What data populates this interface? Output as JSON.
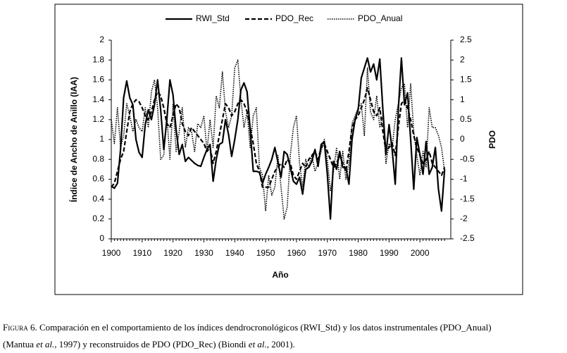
{
  "chart_data": {
    "type": "line",
    "xlabel": "Año",
    "ylabel": "Índice de Ancho de Anillo (IAA)",
    "y2label": "PDO",
    "xlim": [
      1900,
      2010
    ],
    "xticks": [
      1900,
      1910,
      1920,
      1930,
      1940,
      1950,
      1960,
      1970,
      1980,
      1990,
      2000
    ],
    "ylim": [
      0,
      2
    ],
    "yticks": [
      0,
      0.2,
      0.4,
      0.6,
      0.8,
      1,
      1.2,
      1.4,
      1.6,
      1.8,
      2
    ],
    "y2lim": [
      -2.5,
      2.5
    ],
    "y2ticks": [
      -2.5,
      -2,
      -1.5,
      -1,
      -0.5,
      0,
      0.5,
      1,
      1.5,
      2,
      2.5
    ],
    "x": [
      1900,
      1901,
      1902,
      1903,
      1904,
      1905,
      1906,
      1907,
      1908,
      1909,
      1910,
      1911,
      1912,
      1913,
      1914,
      1915,
      1916,
      1917,
      1918,
      1919,
      1920,
      1921,
      1922,
      1923,
      1924,
      1925,
      1926,
      1927,
      1928,
      1929,
      1930,
      1931,
      1932,
      1933,
      1934,
      1935,
      1936,
      1937,
      1938,
      1939,
      1940,
      1941,
      1942,
      1943,
      1944,
      1945,
      1946,
      1947,
      1948,
      1949,
      1950,
      1951,
      1952,
      1953,
      1954,
      1955,
      1956,
      1957,
      1958,
      1959,
      1960,
      1961,
      1962,
      1963,
      1964,
      1965,
      1966,
      1967,
      1968,
      1969,
      1970,
      1971,
      1972,
      1973,
      1974,
      1975,
      1976,
      1977,
      1978,
      1979,
      1980,
      1981,
      1982,
      1983,
      1984,
      1985,
      1986,
      1987,
      1988,
      1989,
      1990,
      1991,
      1992,
      1993,
      1994,
      1995,
      1996,
      1997,
      1998,
      1999,
      2000,
      2001,
      2002,
      2003,
      2004,
      2005,
      2006,
      2007,
      2008
    ],
    "series": [
      {
        "name": "RWI_Std",
        "color": "#000000",
        "dash": "solid",
        "values": [
          0.53,
          0.51,
          0.56,
          0.9,
          1.42,
          1.59,
          1.42,
          1.35,
          1.0,
          0.87,
          0.82,
          1.15,
          1.3,
          1.2,
          1.35,
          1.6,
          1.3,
          0.9,
          1.2,
          1.6,
          1.45,
          1.1,
          0.85,
          0.95,
          0.78,
          0.82,
          0.79,
          0.76,
          0.74,
          0.73,
          0.82,
          0.9,
          0.95,
          0.58,
          0.8,
          0.95,
          0.97,
          1.2,
          1.05,
          0.83,
          1.0,
          1.2,
          1.5,
          1.57,
          1.48,
          1.1,
          0.68,
          0.68,
          0.67,
          0.56,
          0.65,
          0.72,
          0.8,
          0.92,
          0.77,
          0.62,
          0.88,
          0.85,
          0.72,
          0.58,
          0.55,
          0.62,
          0.45,
          0.7,
          0.72,
          0.78,
          0.9,
          0.73,
          0.95,
          0.98,
          0.65,
          0.2,
          0.78,
          0.7,
          0.88,
          0.72,
          0.72,
          0.55,
          1.0,
          1.2,
          1.3,
          1.62,
          1.72,
          1.82,
          1.68,
          1.76,
          1.6,
          1.81,
          1.3,
          0.85,
          1.15,
          0.9,
          0.55,
          1.3,
          1.82,
          1.35,
          1.47,
          1.0,
          0.5,
          1.02,
          0.85,
          0.65,
          0.98,
          0.65,
          0.72,
          0.92,
          0.5,
          0.28,
          0.7
        ]
      },
      {
        "name": "PDO_Rec",
        "color": "#000000",
        "dash": "dashed",
        "axis": "y2",
        "values": [
          -1.2,
          -1.1,
          -0.8,
          -0.5,
          -0.3,
          0.2,
          0.7,
          0.9,
          1.0,
          0.95,
          0.8,
          0.6,
          0.5,
          0.7,
          1.0,
          1.2,
          1.1,
          0.8,
          0.4,
          0.3,
          0.6,
          0.9,
          0.8,
          0.4,
          0.2,
          0.1,
          0.3,
          0.2,
          0.1,
          0.0,
          -0.1,
          -0.3,
          -0.2,
          -0.6,
          -0.3,
          0.1,
          0.5,
          0.9,
          0.8,
          0.6,
          0.7,
          0.9,
          1.0,
          0.9,
          0.7,
          0.3,
          -0.1,
          -0.6,
          -0.8,
          -1.2,
          -1.2,
          -1.2,
          -1.0,
          -0.8,
          -0.7,
          -0.6,
          -0.7,
          -0.5,
          -0.6,
          -0.9,
          -1.0,
          -0.8,
          -0.6,
          -0.7,
          -0.5,
          -0.4,
          -0.3,
          -0.5,
          -0.2,
          -0.1,
          -0.3,
          -0.5,
          -0.7,
          -0.6,
          -0.4,
          -0.6,
          -0.8,
          -0.3,
          0.3,
          0.5,
          0.6,
          0.8,
          1.0,
          1.3,
          1.0,
          0.7,
          0.6,
          0.8,
          0.2,
          -0.3,
          -0.2,
          -0.1,
          -0.4,
          0.3,
          0.9,
          1.0,
          0.8,
          0.5,
          0.1,
          -0.2,
          -0.4,
          -0.6,
          -0.5,
          -0.3,
          -0.6,
          -0.7,
          -0.8,
          -0.9,
          -0.7
        ]
      },
      {
        "name": "PDO_Anual",
        "color": "#000000",
        "dash": "dotted",
        "axis": "y2",
        "values": [
          0.5,
          -0.1,
          0.8,
          -0.2,
          0.1,
          0.9,
          0.6,
          0.2,
          0.5,
          0.3,
          0.2,
          0.8,
          0.3,
          1.2,
          1.5,
          0.8,
          -0.5,
          -0.4,
          0.6,
          -0.5,
          0.9,
          -0.3,
          0.2,
          0.8,
          -0.2,
          0.3,
          0.2,
          -0.3,
          0.4,
          0.3,
          0.6,
          -0.3,
          0.5,
          -0.2,
          1.1,
          0.8,
          1.7,
          0.7,
          0.3,
          0.6,
          1.8,
          2.0,
          1.0,
          0.3,
          0.7,
          -0.2,
          0.6,
          0.8,
          -0.7,
          -0.9,
          -1.8,
          -0.9,
          -1.4,
          -1.2,
          -0.4,
          -1.2,
          -2.0,
          -1.7,
          -0.4,
          0.3,
          0.6,
          -0.6,
          -1.2,
          -0.5,
          -0.7,
          -0.4,
          -0.8,
          -0.6,
          -0.3,
          0.0,
          -0.5,
          -1.3,
          -0.8,
          -0.2,
          -1.0,
          -0.3,
          -1.0,
          -0.6,
          0.4,
          0.6,
          0.8,
          0.9,
          0.1,
          1.8,
          0.7,
          0.5,
          1.1,
          0.3,
          0.6,
          -0.6,
          -0.1,
          -0.2,
          0.5,
          0.9,
          1.3,
          1.4,
          0.3,
          1.4,
          0.2,
          -0.4,
          -0.9,
          -0.3,
          -0.7,
          0.8,
          0.3,
          0.3,
          0.1,
          -0.2,
          -0.8
        ]
      }
    ]
  },
  "caption": {
    "lines": [
      [
        {
          "text": "Figura 6.",
          "style": "smallcaps"
        },
        {
          "text": " Comparación en el comportamiento de los índices dendrocronológicos (RWI_Std) y los datos instrumentales (PDO_Anual)",
          "style": "normal"
        }
      ],
      [
        {
          "text": "(Mantua ",
          "style": "normal"
        },
        {
          "text": "et al.",
          "style": "italic"
        },
        {
          "text": ", 1997) y reconstruidos de PDO (PDO_Rec) (Biondi ",
          "style": "normal"
        },
        {
          "text": "et al.",
          "style": "italic"
        },
        {
          "text": ", 2001).",
          "style": "normal"
        }
      ]
    ]
  }
}
